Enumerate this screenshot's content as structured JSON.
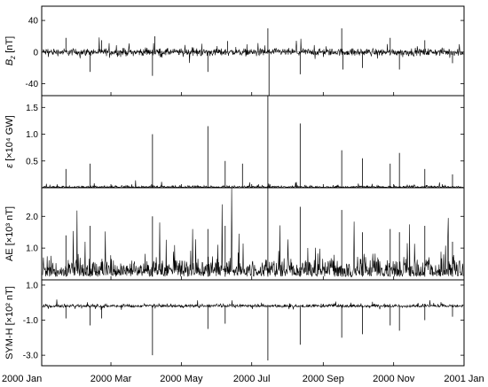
{
  "chart_data": {
    "type": "line",
    "x_axis": {
      "tick_labels": [
        "2000 Jan",
        "2000 Mar",
        "2000 May",
        "2000 Jul",
        "2000 Sep",
        "2000 Nov",
        "2001 Jan"
      ],
      "tick_dates": [
        "2000-01-01",
        "2000-03-01",
        "2000-05-01",
        "2000-07-01",
        "2000-09-01",
        "2000-11-01",
        "2001-01-01"
      ],
      "range": [
        "2000-01-01",
        "2001-01-01"
      ]
    },
    "panels": [
      {
        "name": "bz",
        "ylabel_main": "B",
        "ylabel_sub": "z",
        "ylabel_unit": " [nT]",
        "ylim": [
          -55,
          58
        ],
        "yticks": [
          40,
          0,
          -40
        ],
        "ytick_labels": [
          "40",
          "0",
          "-40"
        ],
        "zero_line": true,
        "baseline": 0,
        "noise": 4.5,
        "spike_sign": "both",
        "spikes": [
          {
            "date": "2000-01-22",
            "value": 18
          },
          {
            "date": "2000-02-12",
            "value": -25
          },
          {
            "date": "2000-02-22",
            "value": 15
          },
          {
            "date": "2000-04-06",
            "value": -30
          },
          {
            "date": "2000-04-08",
            "value": 20
          },
          {
            "date": "2000-05-24",
            "value": -25
          },
          {
            "date": "2000-06-10",
            "value": 14
          },
          {
            "date": "2000-07-15",
            "value": 30
          },
          {
            "date": "2000-07-16",
            "value": -58
          },
          {
            "date": "2000-08-12",
            "value": -28
          },
          {
            "date": "2000-09-17",
            "value": 30
          },
          {
            "date": "2000-09-18",
            "value": -22
          },
          {
            "date": "2000-10-05",
            "value": -20
          },
          {
            "date": "2000-10-29",
            "value": 18
          },
          {
            "date": "2000-11-06",
            "value": -22
          },
          {
            "date": "2000-11-28",
            "value": 15
          },
          {
            "date": "2000-12-22",
            "value": -14
          }
        ]
      },
      {
        "name": "epsilon",
        "ylabel_main": "ε",
        "ylabel_unit": " [×10⁴ GW]",
        "ylim": [
          0,
          1.72
        ],
        "yticks": [
          1.5,
          1.0,
          0.5
        ],
        "ytick_labels": [
          "1.5",
          "1.0",
          "0.5"
        ],
        "zero_line": false,
        "baseline": 0.0,
        "noise": 0.035,
        "spike_sign": "up",
        "spikes": [
          {
            "date": "2000-01-22",
            "value": 0.35
          },
          {
            "date": "2000-02-12",
            "value": 0.45
          },
          {
            "date": "2000-04-06",
            "value": 1.0
          },
          {
            "date": "2000-05-24",
            "value": 1.15
          },
          {
            "date": "2000-06-08",
            "value": 0.5
          },
          {
            "date": "2000-06-23",
            "value": 0.45
          },
          {
            "date": "2000-07-15",
            "value": 1.78
          },
          {
            "date": "2000-08-12",
            "value": 1.2
          },
          {
            "date": "2000-09-17",
            "value": 0.7
          },
          {
            "date": "2000-10-05",
            "value": 0.55
          },
          {
            "date": "2000-10-29",
            "value": 0.45
          },
          {
            "date": "2000-11-06",
            "value": 0.65
          },
          {
            "date": "2000-11-28",
            "value": 0.35
          },
          {
            "date": "2000-12-22",
            "value": 0.25
          }
        ]
      },
      {
        "name": "ae",
        "ylabel_main": "AE",
        "ylabel_unit": " [×10³ nT]",
        "ylim": [
          0,
          2.9
        ],
        "yticks": [
          2.0,
          1.0
        ],
        "ytick_labels": [
          "2.0",
          "1.0"
        ],
        "zero_line": false,
        "baseline": 0.1,
        "noise": 0.55,
        "spike_sign": "up",
        "spikes": [
          {
            "date": "2000-01-22",
            "value": 1.4
          },
          {
            "date": "2000-02-12",
            "value": 1.7
          },
          {
            "date": "2000-04-06",
            "value": 2.0
          },
          {
            "date": "2000-05-24",
            "value": 1.6
          },
          {
            "date": "2000-06-08",
            "value": 1.7
          },
          {
            "date": "2000-07-15",
            "value": 2.9
          },
          {
            "date": "2000-08-12",
            "value": 2.3
          },
          {
            "date": "2000-09-17",
            "value": 2.2
          },
          {
            "date": "2000-10-05",
            "value": 1.5
          },
          {
            "date": "2000-10-29",
            "value": 1.6
          },
          {
            "date": "2000-11-06",
            "value": 1.5
          },
          {
            "date": "2000-11-28",
            "value": 1.7
          },
          {
            "date": "2000-12-22",
            "value": 1.2
          }
        ]
      },
      {
        "name": "symh",
        "ylabel_main": "SYM-H",
        "ylabel_unit": " [×10² nT]",
        "ylim": [
          -3.6,
          1.3
        ],
        "yticks": [
          1.0,
          -1.0,
          -3.0
        ],
        "ytick_labels": [
          "1.0",
          "-1.0",
          "-3.0"
        ],
        "zero_line": false,
        "baseline": -0.2,
        "noise": 0.12,
        "spike_sign": "down",
        "spikes": [
          {
            "date": "2000-01-22",
            "value": -0.9
          },
          {
            "date": "2000-02-12",
            "value": -1.3
          },
          {
            "date": "2000-02-22",
            "value": -0.9
          },
          {
            "date": "2000-04-06",
            "value": -3.0
          },
          {
            "date": "2000-05-24",
            "value": -1.5
          },
          {
            "date": "2000-06-08",
            "value": -1.2
          },
          {
            "date": "2000-07-15",
            "value": -3.3
          },
          {
            "date": "2000-08-12",
            "value": -2.4
          },
          {
            "date": "2000-09-17",
            "value": -2.0
          },
          {
            "date": "2000-10-05",
            "value": -1.8
          },
          {
            "date": "2000-10-29",
            "value": -1.3
          },
          {
            "date": "2000-11-06",
            "value": -1.6
          },
          {
            "date": "2000-11-28",
            "value": -1.0
          },
          {
            "date": "2000-12-22",
            "value": -0.8
          }
        ]
      }
    ],
    "grid": false,
    "legend": "none",
    "line_color": "#000000"
  }
}
